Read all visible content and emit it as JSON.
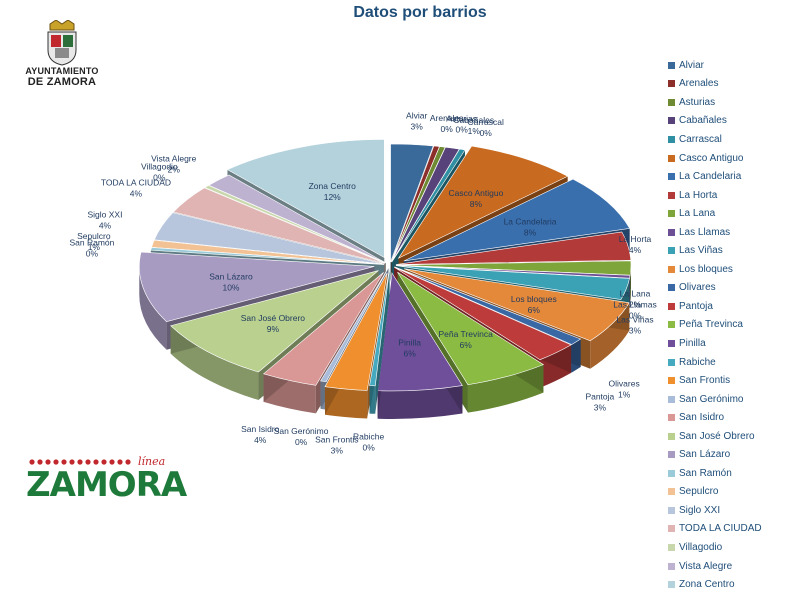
{
  "chart_data": {
    "type": "pie",
    "title": "Datos por barrios",
    "categories": [
      "Alviar",
      "Arenales",
      "Asturias",
      "Cabañales",
      "Carrascal",
      "Casco Antiguo",
      "La Candelaria",
      "La Horta",
      "La Lana",
      "Las Llamas",
      "Las Viñas",
      "Los bloques",
      "Olivares",
      "Pantoja",
      "Peña Trevinca",
      "Pinilla",
      "Rabiche",
      "San Frontis",
      "San Gerónimo",
      "San Isidro",
      "San José Obrero",
      "San Lázaro",
      "San Ramón",
      "Sepulcro",
      "Siglo XXI",
      "TODA LA CIUDAD",
      "Villagodio",
      "Vista Alegre",
      "Zona Centro"
    ],
    "values": [
      3,
      0,
      0,
      1,
      0,
      8,
      8,
      4,
      2,
      0,
      3,
      6,
      1,
      3,
      6,
      6,
      0,
      3,
      0,
      4,
      9,
      10,
      0,
      1,
      4,
      4,
      0,
      2,
      12
    ],
    "value_labels": [
      "3%",
      "0%",
      "0%",
      "1%",
      "0%",
      "8%",
      "8%",
      "4%",
      "2%",
      "0%",
      "3%",
      "6%",
      "1%",
      "3%",
      "6%",
      "6%",
      "0%",
      "3%",
      "0%",
      "4%",
      "9%",
      "10%",
      "0%",
      "1%",
      "4%",
      "4%",
      "0%",
      "2%",
      "12%"
    ],
    "legend_position": "right"
  },
  "colors": {
    "Alviar": "#3a6a9a",
    "Arenales": "#8c2f2a",
    "Asturias": "#6e8a33",
    "Cabañales": "#57427a",
    "Carrascal": "#2f8fa3",
    "Casco Antiguo": "#c86a1f",
    "La Candelaria": "#3a6fae",
    "La Horta": "#b23a38",
    "La Lana": "#7ea53a",
    "Las Llamas": "#6c4f94",
    "Las Viñas": "#3ba1b5",
    "Los bloques": "#e4883a",
    "Olivares": "#3a68a5",
    "Pantoja": "#bd3b3b",
    "Peña Trevinca": "#8cbb44",
    "Pinilla": "#6f4f9a",
    "Rabiche": "#45aabf",
    "San Frontis": "#f08f2e",
    "San Gerónimo": "#a9bcd9",
    "San Isidro": "#d99795",
    "San José Obrero": "#b9d08f",
    "San Lázaro": "#a89bc2",
    "San Ramón": "#9bcbd8",
    "Sepulcro": "#f2c294",
    "Siglo XXI": "#b7c6dd",
    "TODA LA CIUDAD": "#e0b4b2",
    "Villagodio": "#c9d8ac",
    "Vista Alegre": "#bdb3d1",
    "Zona Centro": "#b3d2dc"
  },
  "logo_top": {
    "line1": "AYUNTAMIENTO",
    "line2": "DE ZAMORA"
  },
  "logo_bottom": {
    "brand": "ZAMORA",
    "tagline": "línea"
  }
}
